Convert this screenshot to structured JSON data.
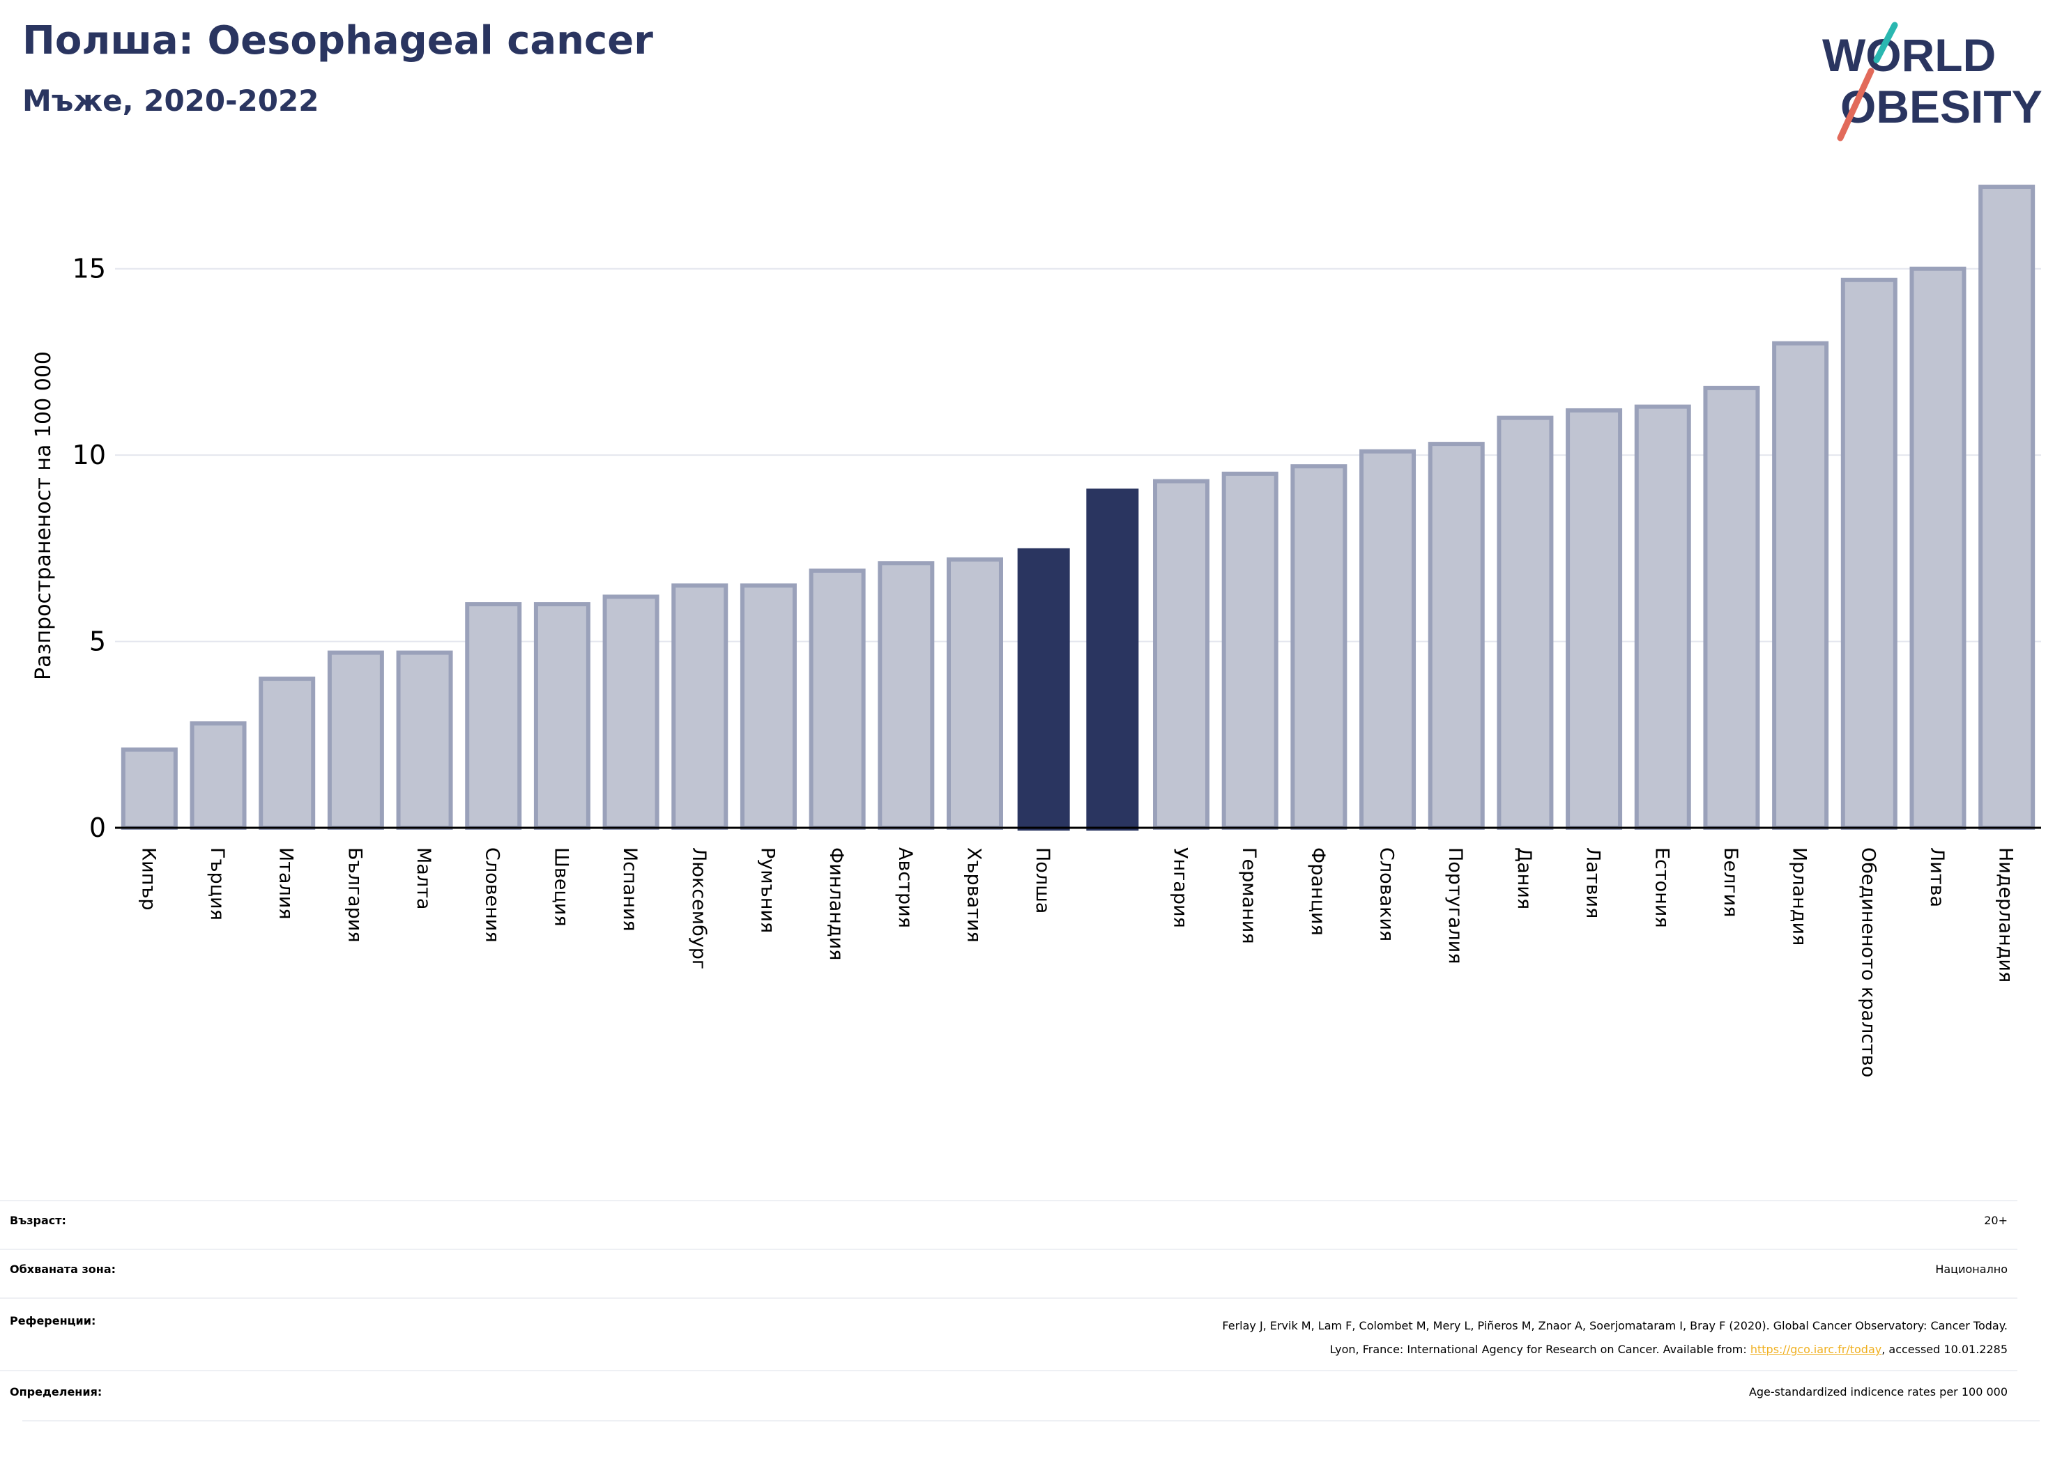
{
  "header": {
    "title": "Полша: Oesophageal cancer",
    "subtitle": "Мъже, 2020-2022"
  },
  "logo": {
    "line1": "WORLD",
    "line2": "OBESITY"
  },
  "colors": {
    "navy": "#2a3560",
    "bar_fill": "#c0c4d2",
    "bar_stroke": "#9aa1ba",
    "accent_teal": "#2ab7b0",
    "accent_coral": "#e26a5a",
    "link": "#f0b020"
  },
  "chart_data": {
    "type": "bar",
    "ylabel": "Разпространеност  на 100 000",
    "ylim": [
      0,
      17.5
    ],
    "yticks": [
      0,
      5,
      10,
      15
    ],
    "grid": true,
    "categories": [
      "Кипър",
      "Гърция",
      "Италия",
      "България",
      "Малта",
      "Словения",
      "Швеция",
      "Испания",
      "Люксембург",
      "Румъния",
      "Финландия",
      "Австрия",
      "Хърватия",
      "Полша",
      "",
      "Унгария",
      "Германия",
      "Франция",
      "Словакия",
      "Португалия",
      "Дания",
      "Латвия",
      "Естония",
      "Белгия",
      "Ирландия",
      "Обединеното кралство",
      "Литва",
      "Нидерландия"
    ],
    "values": [
      2.1,
      2.8,
      4.0,
      4.7,
      4.7,
      6.0,
      6.0,
      6.2,
      6.5,
      6.5,
      6.9,
      7.1,
      7.2,
      7.5,
      9.1,
      9.3,
      9.5,
      9.7,
      10.1,
      10.3,
      11.0,
      11.2,
      11.3,
      11.8,
      13.0,
      14.7,
      15.0,
      17.2
    ],
    "highlighted": [
      13,
      14
    ]
  },
  "info": {
    "age_label": "Възраст:",
    "age_value": "20+",
    "coverage_label": "Обхваната зона:",
    "coverage_value": "Национално",
    "references_label": "Референции:",
    "references_line1": "Ferlay J, Ervik M, Lam F, Colombet M, Mery L, Piñeros M, Znaor A, Soerjomataram I, Bray F (2020). Global Cancer Observatory: Cancer Today.",
    "references_line2_prefix": "Lyon, France: International Agency for Research on Cancer. Available from: ",
    "references_link": "https://gco.iarc.fr/today",
    "references_line2_suffix": ", accessed 10.01.2285",
    "definitions_label": "Определения:",
    "definitions_value": "Age-standardized indicence rates per 100 000"
  }
}
